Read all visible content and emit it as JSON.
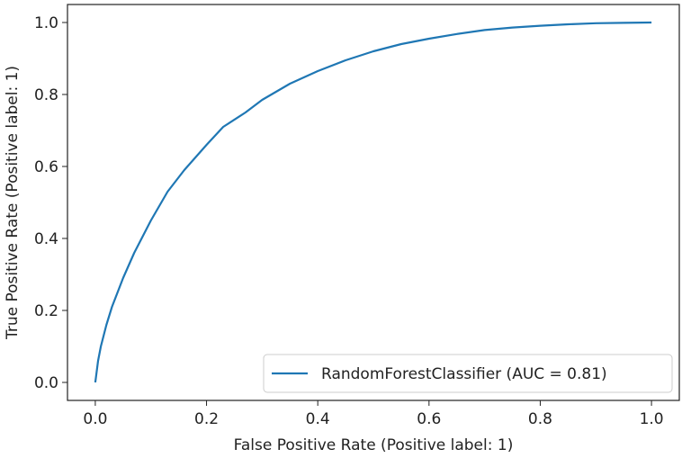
{
  "chart_data": {
    "type": "line",
    "xlabel": "False Positive Rate (Positive label: 1)",
    "ylabel": "True Positive Rate (Positive label: 1)",
    "xlim": [
      -0.05,
      1.05
    ],
    "ylim": [
      -0.05,
      1.05
    ],
    "xticks": [
      "0.0",
      "0.2",
      "0.4",
      "0.6",
      "0.8",
      "1.0"
    ],
    "yticks": [
      "0.0",
      "0.2",
      "0.4",
      "0.6",
      "0.8",
      "1.0"
    ],
    "grid": false,
    "legend_position": "lower-right",
    "series": [
      {
        "name": "RandomForestClassifier (AUC = 0.81)",
        "color": "#1f77b4",
        "x": [
          0.0,
          0.005,
          0.01,
          0.02,
          0.03,
          0.05,
          0.07,
          0.1,
          0.13,
          0.16,
          0.2,
          0.23,
          0.27,
          0.3,
          0.35,
          0.4,
          0.45,
          0.5,
          0.55,
          0.6,
          0.65,
          0.7,
          0.75,
          0.8,
          0.85,
          0.9,
          0.95,
          1.0
        ],
        "y": [
          0.0,
          0.06,
          0.1,
          0.16,
          0.21,
          0.29,
          0.36,
          0.45,
          0.53,
          0.59,
          0.66,
          0.71,
          0.75,
          0.785,
          0.83,
          0.865,
          0.895,
          0.92,
          0.94,
          0.955,
          0.968,
          0.979,
          0.986,
          0.991,
          0.995,
          0.998,
          0.999,
          1.0
        ]
      }
    ]
  }
}
